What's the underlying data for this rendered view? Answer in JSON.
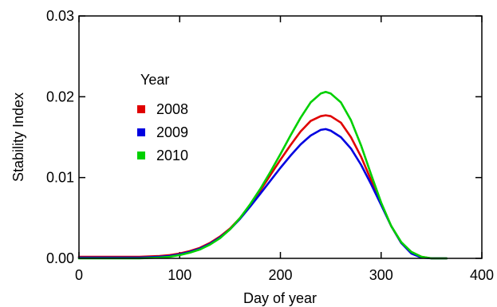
{
  "chart_data": {
    "type": "line",
    "title": "",
    "xlabel": "Day of year",
    "ylabel": "Stability Index",
    "xlim": [
      0,
      400
    ],
    "ylim": [
      0,
      0.03
    ],
    "xticks": [
      0,
      100,
      200,
      300,
      400
    ],
    "xtick_labels": [
      "0",
      "100",
      "200",
      "300",
      "400"
    ],
    "yticks": [
      0,
      0.01,
      0.02,
      0.03
    ],
    "ytick_labels": [
      "0.00",
      "0.01",
      "0.02",
      "0.03"
    ],
    "grid": false,
    "legend": {
      "title": "Year",
      "placement": "top-left"
    },
    "x": [
      0,
      20,
      40,
      60,
      80,
      90,
      100,
      110,
      120,
      130,
      140,
      150,
      160,
      170,
      180,
      190,
      200,
      210,
      220,
      230,
      240,
      245,
      250,
      260,
      270,
      280,
      290,
      300,
      310,
      320,
      330,
      340,
      350,
      360,
      365
    ],
    "series": [
      {
        "name": "2008",
        "color": "#e00000",
        "values": [
          0.0002,
          0.0002,
          0.0002,
          0.0002,
          0.0003,
          0.0004,
          0.0006,
          0.0009,
          0.0013,
          0.0019,
          0.0027,
          0.0037,
          0.005,
          0.0066,
          0.0084,
          0.0103,
          0.0122,
          0.014,
          0.0157,
          0.017,
          0.0176,
          0.0177,
          0.0176,
          0.0168,
          0.015,
          0.0126,
          0.0097,
          0.0067,
          0.004,
          0.0019,
          0.0008,
          0.0002,
          0.0,
          0.0,
          0.0
        ]
      },
      {
        "name": "2009",
        "color": "#0000e0",
        "values": [
          0.0001,
          0.0001,
          0.0001,
          0.0001,
          0.0002,
          0.0003,
          0.0005,
          0.0008,
          0.0012,
          0.0018,
          0.0026,
          0.0036,
          0.0049,
          0.0064,
          0.008,
          0.0096,
          0.0112,
          0.0127,
          0.0141,
          0.0152,
          0.0159,
          0.016,
          0.0158,
          0.015,
          0.0136,
          0.0116,
          0.0092,
          0.0066,
          0.004,
          0.0019,
          0.0006,
          0.0001,
          0.0,
          0.0,
          0.0
        ]
      },
      {
        "name": "2010",
        "color": "#00d000",
        "values": [
          0.0,
          0.0,
          0.0,
          0.0,
          0.0001,
          0.0002,
          0.0004,
          0.0007,
          0.0011,
          0.0017,
          0.0025,
          0.0036,
          0.005,
          0.0067,
          0.0086,
          0.0107,
          0.0129,
          0.0152,
          0.0174,
          0.0193,
          0.0204,
          0.0206,
          0.0204,
          0.0193,
          0.0171,
          0.014,
          0.0104,
          0.0069,
          0.004,
          0.002,
          0.0008,
          0.0002,
          0.0,
          0.0,
          0.0
        ]
      }
    ]
  }
}
